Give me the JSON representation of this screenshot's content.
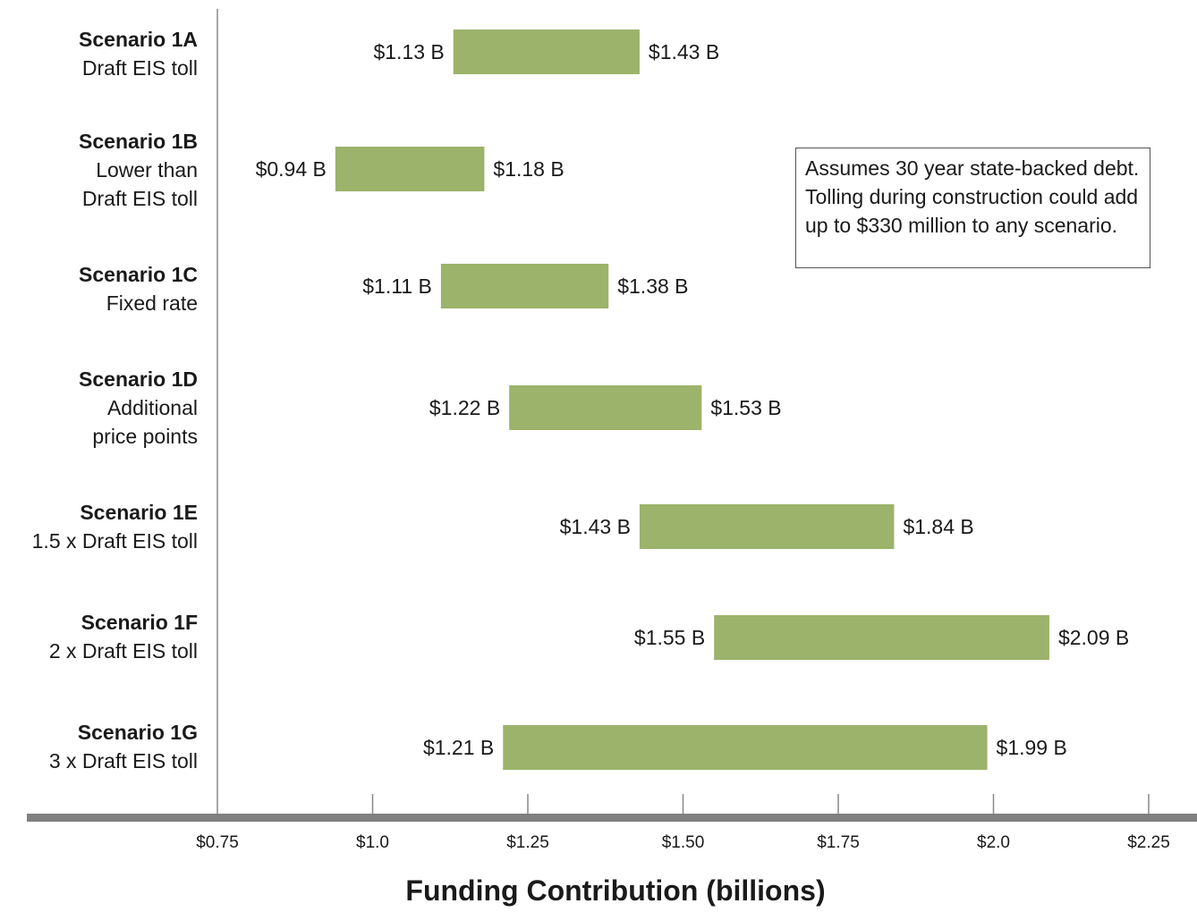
{
  "chart_data": {
    "type": "bar",
    "orientation": "horizontal-range",
    "title": "",
    "xlabel": "Funding Contribution (billions)",
    "ylabel": "",
    "xlim": [
      0.75,
      2.25
    ],
    "x_ticks": [
      0.75,
      1.0,
      1.25,
      1.5,
      1.75,
      2.0,
      2.25
    ],
    "x_tick_labels": [
      "$0.75",
      "$1.0",
      "$1.25",
      "$1.50",
      "$1.75",
      "$2.0",
      "$2.25"
    ],
    "grid": false,
    "bar_color": "#9bb36a",
    "categories": [
      {
        "name": "Scenario 1A",
        "desc": [
          "Draft EIS toll"
        ],
        "low": 1.13,
        "high": 1.43,
        "low_label": "$1.13 B",
        "high_label": "$1.43 B"
      },
      {
        "name": "Scenario 1B",
        "desc": [
          "Lower than",
          "Draft EIS toll"
        ],
        "low": 0.94,
        "high": 1.18,
        "low_label": "$0.94 B",
        "high_label": "$1.18 B"
      },
      {
        "name": "Scenario 1C",
        "desc": [
          "Fixed rate"
        ],
        "low": 1.11,
        "high": 1.38,
        "low_label": "$1.11 B",
        "high_label": "$1.38 B"
      },
      {
        "name": "Scenario 1D",
        "desc": [
          "Additional",
          "price points"
        ],
        "low": 1.22,
        "high": 1.53,
        "low_label": "$1.22 B",
        "high_label": "$1.53 B"
      },
      {
        "name": "Scenario 1E",
        "desc": [
          "1.5 x Draft EIS toll"
        ],
        "low": 1.43,
        "high": 1.84,
        "low_label": "$1.43 B",
        "high_label": "$1.84 B"
      },
      {
        "name": "Scenario 1F",
        "desc": [
          "2 x Draft EIS toll"
        ],
        "low": 1.55,
        "high": 2.09,
        "low_label": "$1.55 B",
        "high_label": "$2.09 B"
      },
      {
        "name": "Scenario 1G",
        "desc": [
          "3 x Draft EIS toll"
        ],
        "low": 1.21,
        "high": 1.99,
        "low_label": "$1.21 B",
        "high_label": "$1.99 B"
      }
    ],
    "annotation": "Assumes 30 year state-backed debt. Tolling during construction could add up to $330 million to any scenario."
  }
}
